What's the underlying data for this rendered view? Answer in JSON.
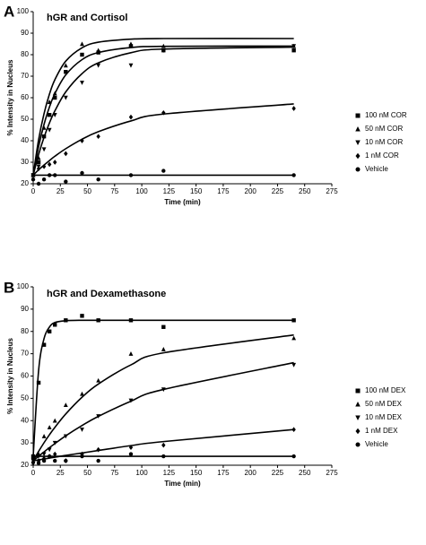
{
  "chart_data": [
    {
      "type": "scatter",
      "panel": "A",
      "title": "hGR and Cortisol",
      "x_label": "Time (min)",
      "y_label": "% Intensity in Nucleus",
      "xlim": [
        0,
        275
      ],
      "ylim": [
        20,
        100
      ],
      "xticks": [
        0,
        25,
        50,
        75,
        100,
        125,
        150,
        175,
        200,
        225,
        250,
        275
      ],
      "yticks": [
        20,
        30,
        40,
        50,
        60,
        70,
        80,
        90,
        100
      ],
      "x": [
        0,
        5,
        10,
        15,
        20,
        30,
        45,
        60,
        90,
        120,
        240
      ],
      "series": [
        {
          "name": "100 nM COR",
          "marker": "square",
          "color": "#000000",
          "values": [
            24,
            30,
            42,
            52,
            60,
            72,
            80,
            81,
            84,
            82,
            82
          ],
          "fit": [
            24,
            37.3,
            47.6,
            55.7,
            61.9,
            70.6,
            77.7,
            81,
            83.3,
            83.9,
            84
          ]
        },
        {
          "name": "50 nM COR",
          "marker": "triangle-up",
          "color": "#000000",
          "values": [
            24,
            32,
            46,
            58,
            62,
            75,
            85,
            82,
            85,
            84,
            84
          ],
          "fit": [
            24,
            40.5,
            52.6,
            61.7,
            68.4,
            77,
            83.2,
            85.8,
            87.2,
            87.5,
            87.5
          ]
        },
        {
          "name": "10 nM COR",
          "marker": "triangle-down",
          "color": "#000000",
          "values": [
            24,
            28,
            36,
            45,
            52,
            60,
            67,
            75,
            75,
            82,
            84
          ],
          "fit": [
            24,
            33.6,
            41.6,
            48.3,
            53.9,
            62.7,
            71.2,
            76.2,
            80.9,
            82.6,
            83.5
          ]
        },
        {
          "name": "1 nM COR",
          "marker": "diamond",
          "color": "#000000",
          "values": [
            24,
            27,
            28,
            29,
            30,
            34,
            40,
            42,
            51,
            53,
            55
          ],
          "fit": [
            24,
            26.5,
            28.7,
            30.8,
            32.8,
            36.3,
            40.7,
            44.2,
            49.2,
            52.4,
            57.1
          ]
        },
        {
          "name": "Vehicle",
          "marker": "circle",
          "color": "#000000",
          "values": [
            22,
            20,
            22,
            24,
            24,
            21,
            25,
            22,
            24,
            26,
            24
          ],
          "fit": [
            24,
            24,
            24,
            24,
            24,
            24,
            24,
            24,
            24,
            24,
            24
          ]
        }
      ]
    },
    {
      "type": "scatter",
      "panel": "B",
      "title": "hGR and Dexamethasone",
      "x_label": "Time (min)",
      "y_label": "% Intensity in Nucleus",
      "xlim": [
        0,
        275
      ],
      "ylim": [
        20,
        100
      ],
      "xticks": [
        0,
        25,
        50,
        75,
        100,
        125,
        150,
        175,
        200,
        225,
        250,
        275
      ],
      "yticks": [
        20,
        30,
        40,
        50,
        60,
        70,
        80,
        90,
        100
      ],
      "x": [
        0,
        5,
        10,
        15,
        20,
        30,
        45,
        60,
        90,
        120,
        240
      ],
      "series": [
        {
          "name": "100 nM DEX",
          "marker": "square",
          "color": "#000000",
          "values": [
            24,
            57,
            74,
            80,
            83,
            85,
            87,
            85,
            85,
            82,
            85
          ],
          "fit": [
            24,
            62.5,
            76.8,
            82,
            84,
            84.8,
            85,
            85,
            85,
            85,
            85
          ]
        },
        {
          "name": "50 nM DEX",
          "marker": "triangle-up",
          "color": "#000000",
          "values": [
            22,
            25,
            33,
            37,
            40,
            47,
            52,
            58,
            70,
            72,
            77
          ],
          "fit": [
            22,
            26.2,
            30.1,
            33.7,
            37,
            43,
            50.5,
            56.4,
            65,
            70.4,
            78.4
          ]
        },
        {
          "name": "10 nM DEX",
          "marker": "triangle-down",
          "color": "#000000",
          "values": [
            22,
            24,
            25,
            27,
            30,
            33,
            36,
            42,
            49,
            54,
            65
          ],
          "fit": [
            22,
            24,
            26,
            27.9,
            29.7,
            33.2,
            37.8,
            41.9,
            48.7,
            54,
            66
          ]
        },
        {
          "name": "1 nM DEX",
          "marker": "diamond",
          "color": "#000000",
          "values": [
            21,
            22,
            23,
            24,
            25,
            22,
            25,
            27,
            28,
            29,
            36
          ],
          "fit": [
            22,
            22.4,
            22.8,
            23.2,
            23.6,
            24.4,
            25.5,
            26.6,
            28.8,
            30.6,
            36
          ]
        },
        {
          "name": "Vehicle",
          "marker": "circle",
          "color": "#000000",
          "values": [
            23,
            21,
            22,
            24,
            22,
            22,
            24,
            22,
            25,
            24,
            24
          ],
          "fit": [
            24,
            24,
            24,
            24,
            24,
            24,
            24,
            24,
            24,
            24,
            24
          ]
        }
      ]
    }
  ]
}
